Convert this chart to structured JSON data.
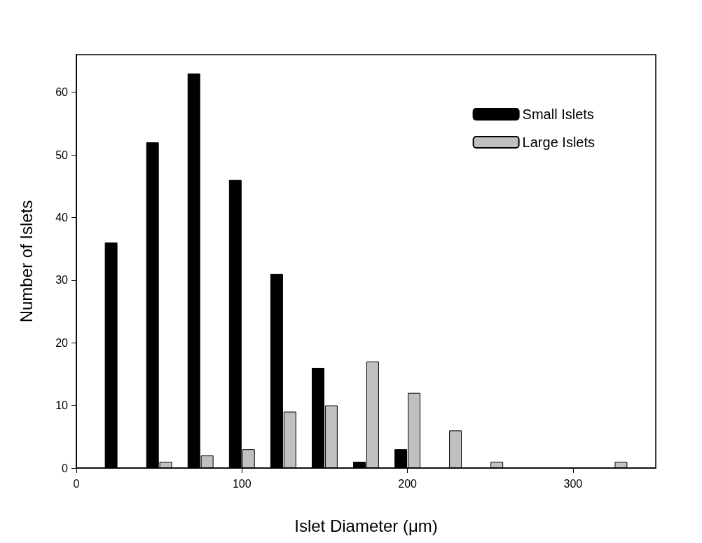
{
  "chart_data": {
    "type": "bar",
    "xlabel": "Islet Diameter (μm)",
    "ylabel": "Number of Islets",
    "series": [
      {
        "name": "Small Islets",
        "color": "#000000",
        "x": [
          21,
          46,
          71,
          96,
          121,
          146,
          171,
          196
        ],
        "values": [
          36,
          52,
          63,
          46,
          31,
          16,
          1,
          3
        ]
      },
      {
        "name": "Large Islets",
        "color": "#c0c0c0",
        "x": [
          54,
          79,
          104,
          129,
          154,
          179,
          204,
          229,
          254,
          329
        ],
        "values": [
          1,
          2,
          3,
          9,
          10,
          17,
          12,
          6,
          1,
          1
        ]
      }
    ],
    "xlim": [
      0,
      350
    ],
    "xticks": [
      0,
      100,
      200,
      300
    ],
    "ylim": [
      0,
      66
    ],
    "yticks": [
      0,
      10,
      20,
      30,
      40,
      50,
      60
    ],
    "grid": false,
    "legend": "top right"
  }
}
